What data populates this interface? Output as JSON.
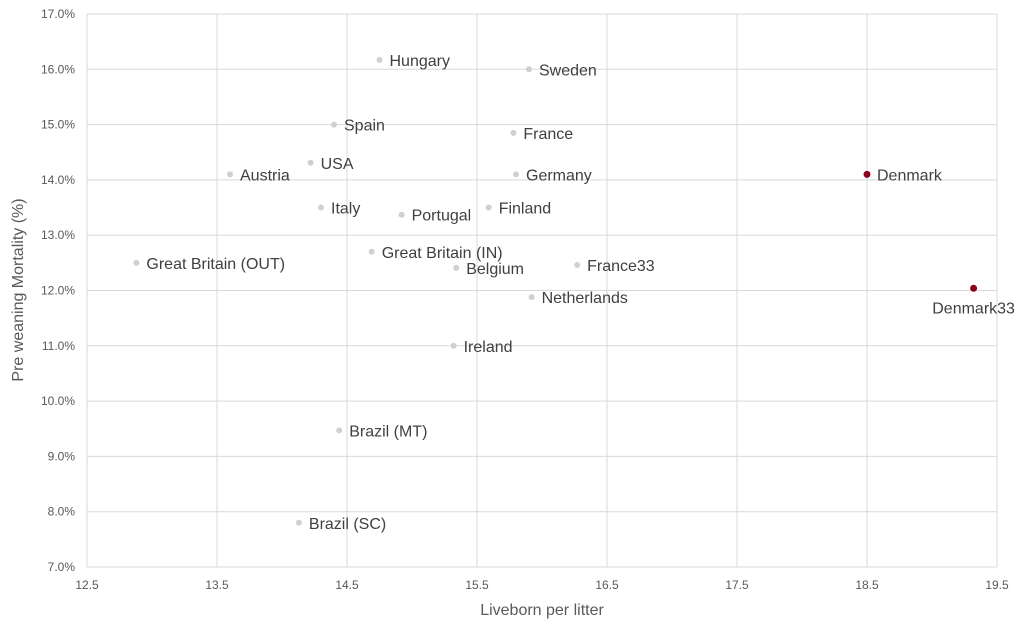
{
  "chart_data": {
    "type": "scatter",
    "title": "",
    "xlabel": "Liveborn per litter",
    "ylabel": "Pre weaning Mortality (%)",
    "xlim": [
      12.5,
      19.5
    ],
    "ylim": [
      7.0,
      17.0
    ],
    "xticks": [
      "12.5",
      "13.5",
      "14.5",
      "15.5",
      "16.5",
      "17.5",
      "18.5",
      "19.5"
    ],
    "yticks": [
      "7.0%",
      "8.0%",
      "9.0%",
      "10.0%",
      "11.0%",
      "12.0%",
      "13.0%",
      "14.0%",
      "15.0%",
      "16.0%",
      "17.0%"
    ],
    "grid": true,
    "colors": {
      "default": "#d0d0d0",
      "highlight": "#8b0020",
      "grid": "#d9d9d9",
      "text": "#404040"
    },
    "points": [
      {
        "label": "Hungary",
        "x": 14.75,
        "y": 16.17,
        "highlight": false
      },
      {
        "label": "Sweden",
        "x": 15.9,
        "y": 16.0,
        "highlight": false
      },
      {
        "label": "Spain",
        "x": 14.4,
        "y": 15.0,
        "highlight": false
      },
      {
        "label": "France",
        "x": 15.78,
        "y": 14.85,
        "highlight": false
      },
      {
        "label": "USA",
        "x": 14.22,
        "y": 14.31,
        "highlight": false
      },
      {
        "label": "Austria",
        "x": 13.6,
        "y": 14.1,
        "highlight": false
      },
      {
        "label": "Germany",
        "x": 15.8,
        "y": 14.1,
        "highlight": false
      },
      {
        "label": "Denmark",
        "x": 18.5,
        "y": 14.1,
        "highlight": true
      },
      {
        "label": "Italy",
        "x": 14.3,
        "y": 13.5,
        "highlight": false
      },
      {
        "label": "Portugal",
        "x": 14.92,
        "y": 13.37,
        "highlight": false
      },
      {
        "label": "Finland",
        "x": 15.59,
        "y": 13.5,
        "highlight": false
      },
      {
        "label": "Great Britain (IN)",
        "x": 14.69,
        "y": 12.7,
        "highlight": false
      },
      {
        "label": "Great Britain (OUT)",
        "x": 12.88,
        "y": 12.5,
        "highlight": false
      },
      {
        "label": "Belgium",
        "x": 15.34,
        "y": 12.41,
        "highlight": false
      },
      {
        "label": "France33",
        "x": 16.27,
        "y": 12.46,
        "highlight": false
      },
      {
        "label": "Netherlands",
        "x": 15.92,
        "y": 11.88,
        "highlight": false
      },
      {
        "label": "Denmark33",
        "x": 19.32,
        "y": 12.04,
        "highlight": true,
        "label_position": "below"
      },
      {
        "label": "Ireland",
        "x": 15.32,
        "y": 11.0,
        "highlight": false
      },
      {
        "label": "Brazil (MT)",
        "x": 14.44,
        "y": 9.47,
        "highlight": false
      },
      {
        "label": "Brazil (SC)",
        "x": 14.13,
        "y": 7.8,
        "highlight": false
      }
    ]
  }
}
